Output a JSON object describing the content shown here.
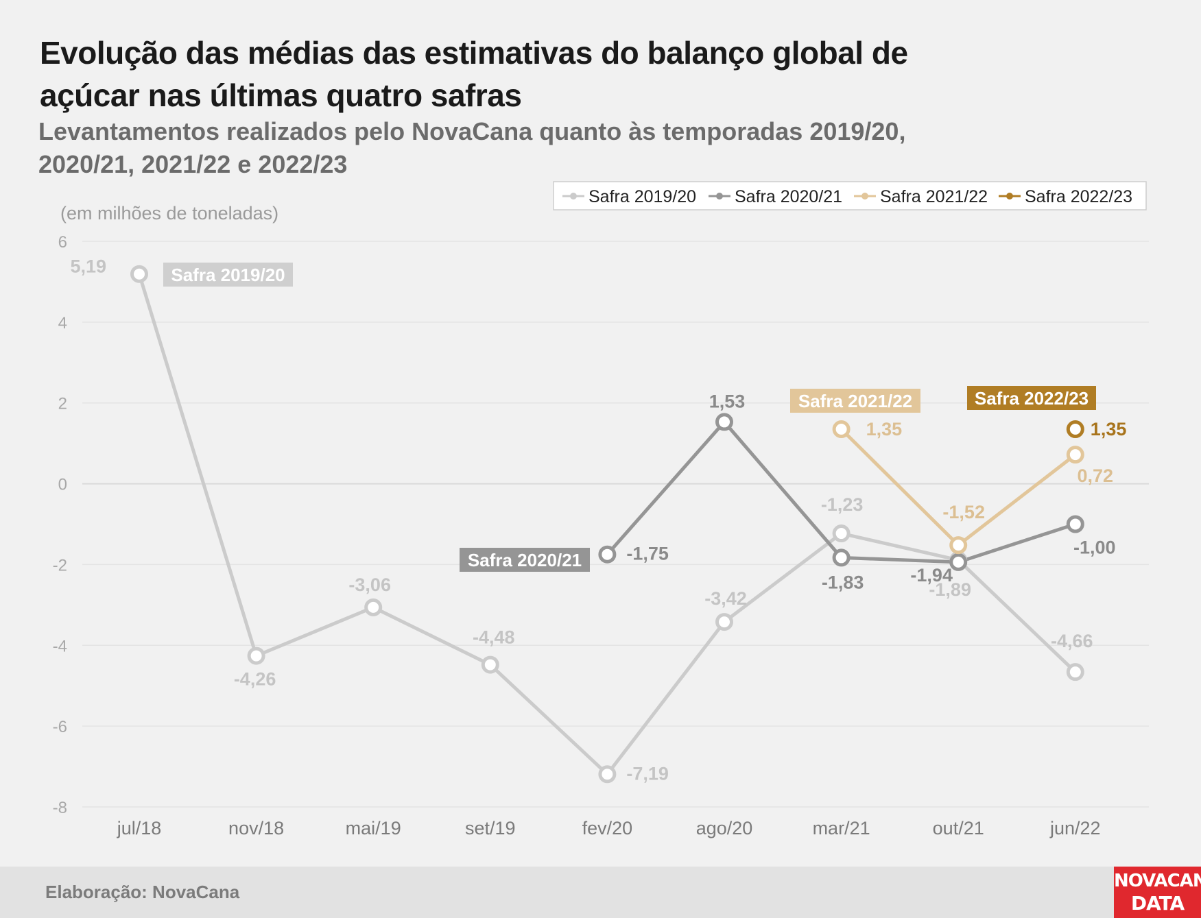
{
  "title": "Evolução das médias das estimativas do balanço global de açúcar nas últimas quatro safras",
  "subtitle": "Levantamentos realizados pelo NovaCana quanto às temporadas 2019/20, 2020/21, 2021/22 e 2022/23",
  "footer": {
    "text": "Elaboração: NovaCana"
  },
  "logo": {
    "line1": "NOVACANA",
    "line2": "DATA"
  },
  "chart_data": {
    "type": "line",
    "unit_label": "(em milhões de toneladas)",
    "categories": [
      "jul/18",
      "nov/18",
      "mai/19",
      "set/19",
      "fev/20",
      "ago/20",
      "mar/21",
      "out/21",
      "jun/22"
    ],
    "ylim": [
      -8,
      6
    ],
    "yticks": [
      6,
      4,
      2,
      0,
      -2,
      -4,
      -6,
      -8
    ],
    "grid": true,
    "legend_position": "top-right",
    "series": [
      {
        "name": "Safra 2019/20",
        "color": "#cbcbcb",
        "values": [
          5.19,
          -4.26,
          -3.06,
          -4.48,
          -7.19,
          -3.42,
          -1.23,
          -1.89,
          -4.66
        ],
        "labels": [
          "5,19",
          "-4,26",
          "-3,06",
          "-4,48",
          "-7,19",
          "-3,42",
          "-1,23",
          "-1,89",
          "-4,66"
        ]
      },
      {
        "name": "Safra 2020/21",
        "color": "#959595",
        "values": [
          null,
          null,
          null,
          null,
          -1.75,
          1.53,
          -1.83,
          -1.94,
          -1.0
        ],
        "labels": [
          null,
          null,
          null,
          null,
          "-1,75",
          "1,53",
          "-1,83",
          "-1,94",
          "-1,00"
        ]
      },
      {
        "name": "Safra 2021/22",
        "color": "#e2c69a",
        "values": [
          null,
          null,
          null,
          null,
          null,
          null,
          1.35,
          -1.52,
          0.72
        ],
        "labels": [
          null,
          null,
          null,
          null,
          null,
          null,
          "1,35",
          "-1,52",
          "0,72"
        ]
      },
      {
        "name": "Safra 2022/23",
        "color": "#b07d24",
        "values": [
          null,
          null,
          null,
          null,
          null,
          null,
          null,
          null,
          1.35
        ],
        "labels": [
          null,
          null,
          null,
          null,
          null,
          null,
          null,
          null,
          "1,35"
        ]
      }
    ],
    "annotations": [
      {
        "text": "Safra 2019/20",
        "series": 0
      },
      {
        "text": "Safra 2020/21",
        "series": 1
      },
      {
        "text": "Safra 2021/22",
        "series": 2
      },
      {
        "text": "Safra 2022/23",
        "series": 3
      }
    ]
  }
}
